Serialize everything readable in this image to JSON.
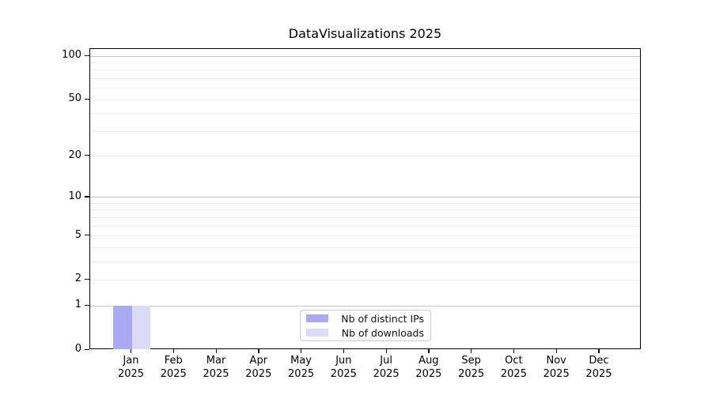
{
  "title": "DataVisualizations 2025",
  "colors": {
    "distinct_ips_bar": "#a9a9f4",
    "downloads_bar": "#dcdcf9",
    "major_gridline": "#c4c4c4",
    "minor_gridline": "#ededed",
    "axis_frame": "#000000"
  },
  "legend": {
    "items": [
      {
        "label": "Nb of distinct IPs",
        "color": "#a9a9f4"
      },
      {
        "label": "Nb of downloads",
        "color": "#dcdcf9"
      }
    ]
  },
  "chart_data": {
    "type": "bar",
    "title": "DataVisualizations 2025",
    "xlabel": "",
    "ylabel": "",
    "categories": [
      "Jan 2025",
      "Feb 2025",
      "Mar 2025",
      "Apr 2025",
      "May 2025",
      "Jun 2025",
      "Jul 2025",
      "Aug 2025",
      "Sep 2025",
      "Oct 2025",
      "Nov 2025",
      "Dec 2025"
    ],
    "category_line1": [
      "Jan",
      "Feb",
      "Mar",
      "Apr",
      "May",
      "Jun",
      "Jul",
      "Aug",
      "Sep",
      "Oct",
      "Nov",
      "Dec"
    ],
    "category_line2": "2025",
    "series": [
      {
        "name": "Nb of distinct IPs",
        "color": "#a9a9f4",
        "values": [
          1,
          0,
          0,
          0,
          0,
          0,
          0,
          0,
          0,
          0,
          0,
          0
        ]
      },
      {
        "name": "Nb of downloads",
        "color": "#dcdcf9",
        "values": [
          1,
          0,
          0,
          0,
          0,
          0,
          0,
          0,
          0,
          0,
          0,
          0
        ]
      }
    ],
    "yscale": "log1p",
    "ylim": [
      0,
      112
    ],
    "y_ticks": [
      0,
      1,
      2,
      5,
      10,
      20,
      50,
      100
    ],
    "y_major_gridlines": [
      1,
      10,
      100
    ],
    "y_minor_gridlines": [
      2,
      3,
      4,
      5,
      6,
      7,
      8,
      9,
      20,
      30,
      40,
      50,
      60,
      70,
      80,
      90
    ],
    "grid": true,
    "legend_position": "lower center"
  }
}
